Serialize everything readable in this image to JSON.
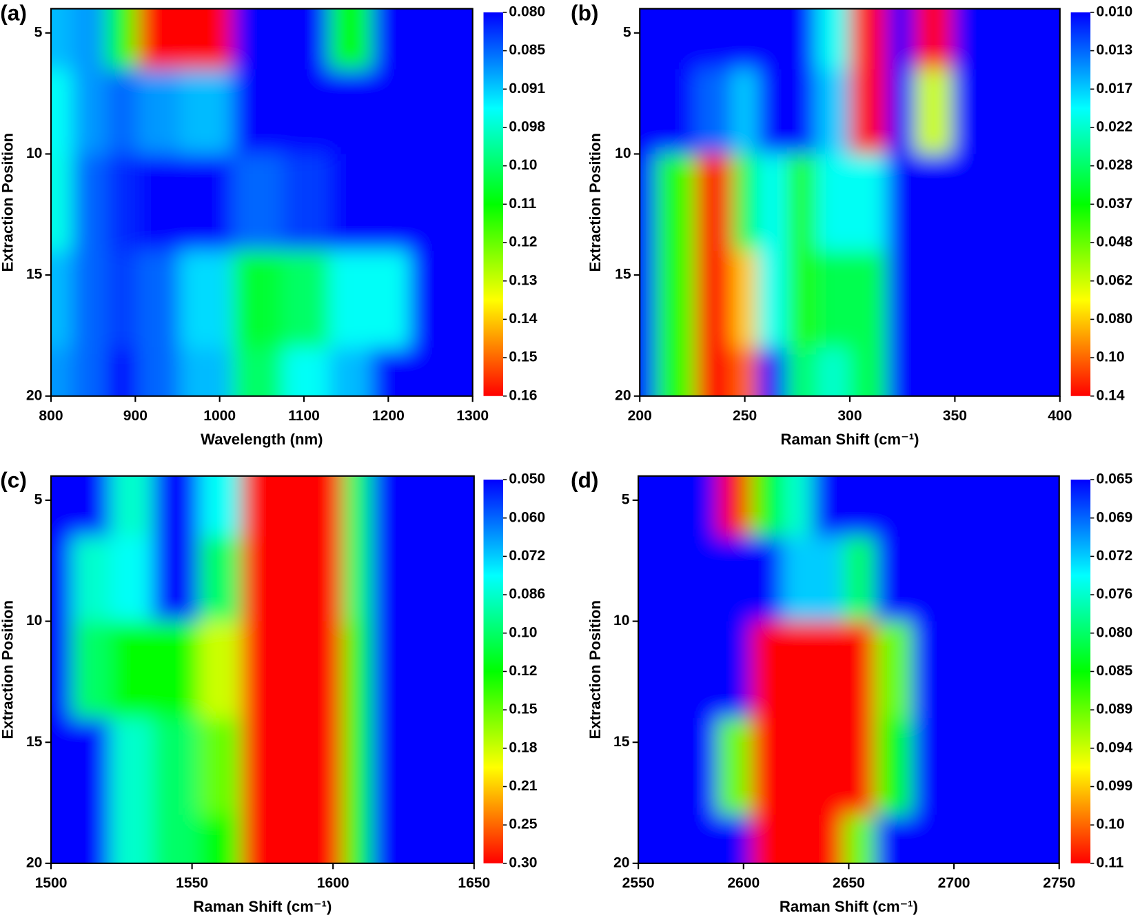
{
  "chart_data": [
    {
      "type": "contour",
      "panel_label": "(a)",
      "x_label": "Wavelength (nm)",
      "y_label": "Extraction Position",
      "x": [
        800,
        850,
        880,
        925,
        980,
        1050,
        1100,
        1160,
        1200,
        1250,
        1300
      ],
      "y": [
        5,
        8,
        12,
        16,
        20
      ],
      "z": [
        [
          0.09,
          0.088,
          0.11,
          0.16,
          0.16,
          0.08,
          0.08,
          0.11,
          0.08,
          0.08,
          0.08
        ],
        [
          0.095,
          0.088,
          0.085,
          0.088,
          0.09,
          0.08,
          0.08,
          0.08,
          0.08,
          0.08,
          0.08
        ],
        [
          0.096,
          0.085,
          0.082,
          0.08,
          0.08,
          0.085,
          0.083,
          0.08,
          0.08,
          0.08,
          0.08
        ],
        [
          0.09,
          0.085,
          0.083,
          0.085,
          0.092,
          0.105,
          0.1,
          0.095,
          0.095,
          0.08,
          0.08
        ],
        [
          0.088,
          0.085,
          0.08,
          0.085,
          0.09,
          0.1,
          0.095,
          0.09,
          0.08,
          0.08,
          0.08
        ]
      ],
      "xlim": [
        800,
        1300
      ],
      "xticks": [
        800,
        900,
        1000,
        1100,
        1200,
        1300
      ],
      "ylim": [
        20,
        4
      ],
      "yticks": [
        5,
        10,
        15,
        20
      ],
      "colorbar_ticks": [
        {
          "value": 0.08,
          "label": "0.080"
        },
        0.085,
        0.091,
        0.098,
        {
          "value": 0.1,
          "label": "0.10"
        },
        0.11,
        0.12,
        0.13,
        0.14,
        0.15,
        0.16
      ],
      "colormap": [
        "#0000ff",
        "#00ffff",
        "#00ff00",
        "#ffff00",
        "#ff0000"
      ]
    },
    {
      "type": "contour",
      "panel_label": "(b)",
      "x_label": "Raman Shift (cm⁻¹)",
      "y_label": "Extraction Position",
      "x": [
        200,
        215,
        238,
        250,
        262,
        278,
        290,
        310,
        325,
        337,
        360,
        400
      ],
      "y": [
        5,
        8,
        12,
        16,
        20
      ],
      "z": [
        [
          0.01,
          0.01,
          0.01,
          0.01,
          0.01,
          0.01,
          0.02,
          0.14,
          0.01,
          0.14,
          0.01,
          0.01
        ],
        [
          0.01,
          0.01,
          0.013,
          0.017,
          0.01,
          0.01,
          0.017,
          0.14,
          0.01,
          0.062,
          0.01,
          0.01
        ],
        [
          0.01,
          0.04,
          0.14,
          0.03,
          0.02,
          0.04,
          0.02,
          0.02,
          0.01,
          0.01,
          0.01,
          0.01
        ],
        [
          0.01,
          0.04,
          0.14,
          0.08,
          0.02,
          0.04,
          0.03,
          0.03,
          0.01,
          0.01,
          0.01,
          0.01
        ],
        [
          0.01,
          0.04,
          0.14,
          0.1,
          0.01,
          0.028,
          0.022,
          0.03,
          0.01,
          0.01,
          0.01,
          0.01
        ]
      ],
      "xlim": [
        200,
        400
      ],
      "xticks": [
        200,
        250,
        300,
        350,
        400
      ],
      "ylim": [
        20,
        4
      ],
      "yticks": [
        5,
        10,
        15,
        20
      ],
      "colorbar_ticks": [
        {
          "value": 0.01,
          "label": "0.010"
        },
        0.013,
        0.017,
        0.022,
        0.028,
        0.037,
        0.048,
        0.062,
        {
          "value": 0.08,
          "label": "0.080"
        },
        {
          "value": 0.1,
          "label": "0.10"
        },
        0.14
      ],
      "colormap": [
        "#0000ff",
        "#00ffff",
        "#00ff00",
        "#ffff00",
        "#ff0000"
      ]
    },
    {
      "type": "contour",
      "panel_label": "(c)",
      "x_label": "Raman Shift (cm⁻¹)",
      "y_label": "Extraction Position",
      "x": [
        1500,
        1515,
        1527,
        1545,
        1560,
        1575,
        1590,
        1600,
        1607,
        1620,
        1650
      ],
      "y": [
        5,
        8,
        12,
        16,
        20
      ],
      "z": [
        [
          0.05,
          0.05,
          0.086,
          0.05,
          0.08,
          0.3,
          0.3,
          0.3,
          0.1,
          0.05,
          0.05
        ],
        [
          0.05,
          0.086,
          0.08,
          0.05,
          0.1,
          0.3,
          0.3,
          0.3,
          0.1,
          0.05,
          0.05
        ],
        [
          0.05,
          0.1,
          0.12,
          0.12,
          0.18,
          0.3,
          0.3,
          0.3,
          0.12,
          0.05,
          0.05
        ],
        [
          0.05,
          0.05,
          0.086,
          0.1,
          0.15,
          0.3,
          0.3,
          0.3,
          0.12,
          0.05,
          0.05
        ],
        [
          0.05,
          0.05,
          0.086,
          0.1,
          0.12,
          0.3,
          0.3,
          0.3,
          0.12,
          0.05,
          0.05
        ]
      ],
      "xlim": [
        1500,
        1650
      ],
      "xticks": [
        1500,
        1550,
        1600,
        1650
      ],
      "ylim": [
        20,
        4
      ],
      "yticks": [
        5,
        10,
        15,
        20
      ],
      "colorbar_ticks": [
        {
          "value": 0.05,
          "label": "0.050"
        },
        {
          "value": 0.06,
          "label": "0.060"
        },
        0.072,
        0.086,
        {
          "value": 0.1,
          "label": "0.10"
        },
        0.12,
        0.15,
        0.18,
        0.21,
        0.25,
        {
          "value": 0.3,
          "label": "0.30"
        }
      ],
      "colormap": [
        "#0000ff",
        "#00ffff",
        "#00ff00",
        "#ffff00",
        "#ff0000"
      ]
    },
    {
      "type": "contour",
      "panel_label": "(d)",
      "x_label": "Raman Shift (cm⁻¹)",
      "y_label": "Extraction Position",
      "x": [
        2550,
        2580,
        2595,
        2612,
        2625,
        2640,
        2655,
        2670,
        2690,
        2750
      ],
      "y": [
        5,
        8,
        12,
        16,
        20
      ],
      "z": [
        [
          0.065,
          0.065,
          0.11,
          0.085,
          0.076,
          0.065,
          0.065,
          0.065,
          0.065,
          0.065
        ],
        [
          0.065,
          0.065,
          0.065,
          0.065,
          0.072,
          0.072,
          0.08,
          0.065,
          0.065,
          0.065
        ],
        [
          0.065,
          0.065,
          0.065,
          0.11,
          0.11,
          0.11,
          0.11,
          0.089,
          0.065,
          0.065
        ],
        [
          0.065,
          0.065,
          0.089,
          0.11,
          0.11,
          0.11,
          0.11,
          0.085,
          0.065,
          0.065
        ],
        [
          0.065,
          0.065,
          0.065,
          0.11,
          0.11,
          0.11,
          0.089,
          0.065,
          0.065,
          0.065
        ]
      ],
      "xlim": [
        2550,
        2750
      ],
      "xticks": [
        2550,
        2600,
        2650,
        2700,
        2750
      ],
      "ylim": [
        20,
        4
      ],
      "yticks": [
        5,
        10,
        15,
        20
      ],
      "colorbar_ticks": [
        0.065,
        0.069,
        0.072,
        0.076,
        {
          "value": 0.08,
          "label": "0.080"
        },
        0.085,
        0.089,
        0.094,
        0.099,
        {
          "value": 0.1,
          "label": "0.10"
        },
        0.11
      ],
      "colormap": [
        "#0000ff",
        "#00ffff",
        "#00ff00",
        "#ffff00",
        "#ff0000"
      ]
    }
  ]
}
